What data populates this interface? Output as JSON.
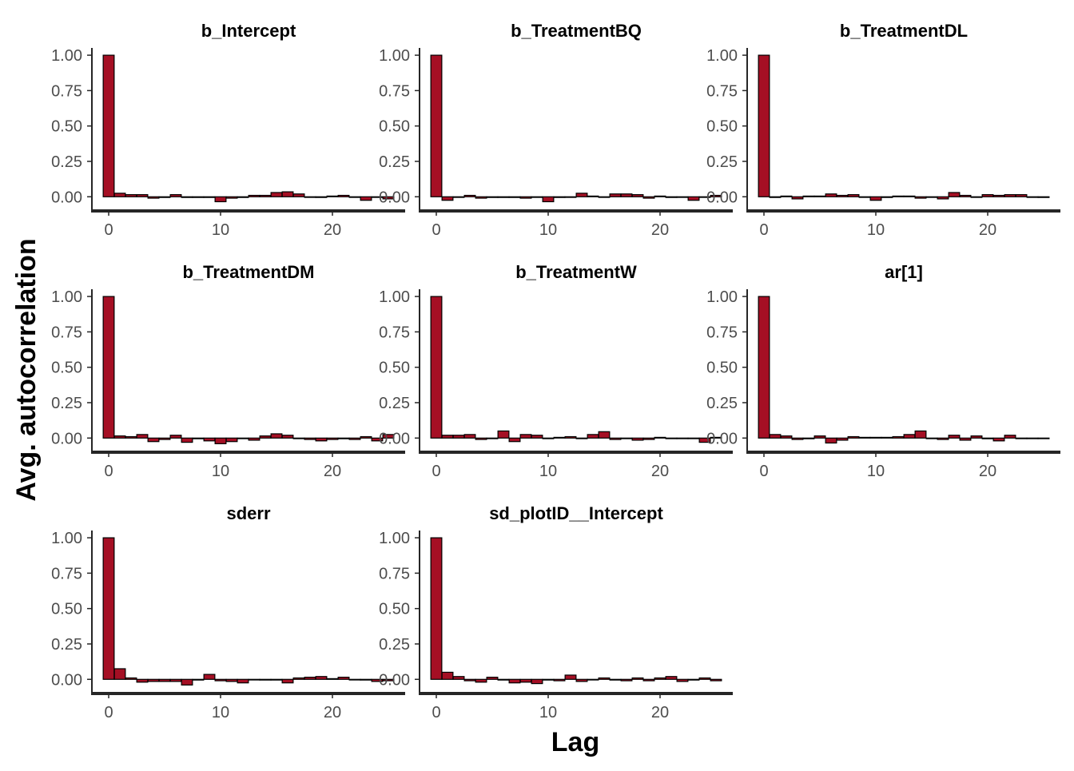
{
  "chart_data": {
    "type": "bar",
    "xlabel": "Lag",
    "ylabel": "Avg. autocorrelation",
    "x_ticks": [
      0,
      10,
      20
    ],
    "y_ticks": [
      "0.00",
      "0.25",
      "0.50",
      "0.75",
      "1.00"
    ],
    "xlim": [
      -1.5,
      26.5
    ],
    "ylim": [
      -0.1,
      1.04
    ],
    "grid": false,
    "lags": [
      0,
      1,
      2,
      3,
      4,
      5,
      6,
      7,
      8,
      9,
      10,
      11,
      12,
      13,
      14,
      15,
      16,
      17,
      18,
      19,
      20,
      21,
      22,
      23,
      24,
      25
    ],
    "colors": {
      "bar_fill": "#a50f24",
      "bar_edge": "#000000",
      "axis": "#262626"
    },
    "panels": [
      {
        "title": "b_Intercept",
        "values": [
          1.0,
          0.025,
          0.015,
          0.015,
          -0.01,
          -0.005,
          0.015,
          -0.005,
          -0.005,
          -0.005,
          -0.035,
          -0.01,
          -0.005,
          0.01,
          0.01,
          0.03,
          0.035,
          0.02,
          0.0,
          -0.005,
          0.005,
          0.01,
          0.0,
          -0.025,
          0.0,
          -0.015
        ]
      },
      {
        "title": "b_TreatmentBQ",
        "values": [
          1.0,
          -0.025,
          0.0,
          0.01,
          -0.01,
          -0.005,
          -0.005,
          -0.005,
          -0.01,
          0.0,
          -0.035,
          -0.005,
          0.0,
          0.025,
          0.005,
          0.0,
          0.02,
          0.02,
          0.015,
          -0.01,
          0.005,
          -0.005,
          0.0,
          -0.025,
          0.0,
          0.01
        ]
      },
      {
        "title": "b_TreatmentDL",
        "values": [
          1.0,
          -0.005,
          0.005,
          -0.015,
          0.005,
          0.005,
          0.02,
          0.01,
          0.015,
          0.0,
          -0.025,
          -0.005,
          0.005,
          0.005,
          -0.01,
          0.0,
          -0.015,
          0.03,
          0.01,
          0.0,
          0.015,
          0.01,
          0.015,
          0.015,
          0.0,
          -0.005
        ]
      },
      {
        "title": "b_TreatmentDM",
        "values": [
          1.0,
          0.015,
          0.01,
          0.025,
          -0.025,
          -0.01,
          0.02,
          -0.03,
          -0.005,
          -0.02,
          -0.04,
          -0.025,
          0.0,
          -0.015,
          0.015,
          0.03,
          0.02,
          0.0,
          -0.01,
          -0.02,
          -0.01,
          -0.005,
          -0.01,
          0.01,
          -0.02,
          0.025
        ]
      },
      {
        "title": "b_TreatmentW",
        "values": [
          1.0,
          0.02,
          0.02,
          0.025,
          -0.01,
          0.0,
          0.05,
          -0.025,
          0.025,
          0.02,
          0.0,
          0.005,
          0.01,
          0.0,
          0.025,
          0.045,
          -0.01,
          0.0,
          -0.015,
          -0.01,
          0.005,
          0.0,
          0.0,
          0.0,
          -0.03,
          0.005
        ]
      },
      {
        "title": "ar[1]",
        "values": [
          1.0,
          0.025,
          0.015,
          -0.01,
          -0.005,
          0.015,
          -0.035,
          -0.015,
          0.01,
          0.005,
          0.005,
          0.005,
          0.01,
          0.025,
          0.05,
          0.0,
          -0.01,
          0.02,
          -0.015,
          0.015,
          -0.005,
          -0.02,
          0.02,
          0.0,
          0.0,
          0.0
        ]
      },
      {
        "title": "sderr",
        "values": [
          1.0,
          0.075,
          0.01,
          -0.02,
          -0.015,
          -0.015,
          -0.015,
          -0.04,
          -0.005,
          0.035,
          -0.01,
          -0.015,
          -0.025,
          0.0,
          -0.005,
          -0.005,
          -0.025,
          0.01,
          0.015,
          0.02,
          0.005,
          0.015,
          0.0,
          -0.005,
          -0.015,
          -0.01
        ]
      },
      {
        "title": "sd_plotID__Intercept",
        "values": [
          1.0,
          0.05,
          0.02,
          -0.01,
          -0.02,
          0.015,
          -0.005,
          -0.025,
          -0.02,
          -0.03,
          -0.005,
          -0.01,
          0.03,
          -0.015,
          0.0,
          0.01,
          -0.005,
          -0.01,
          0.01,
          -0.01,
          0.01,
          0.02,
          -0.015,
          -0.005,
          0.01,
          -0.01
        ]
      }
    ]
  }
}
